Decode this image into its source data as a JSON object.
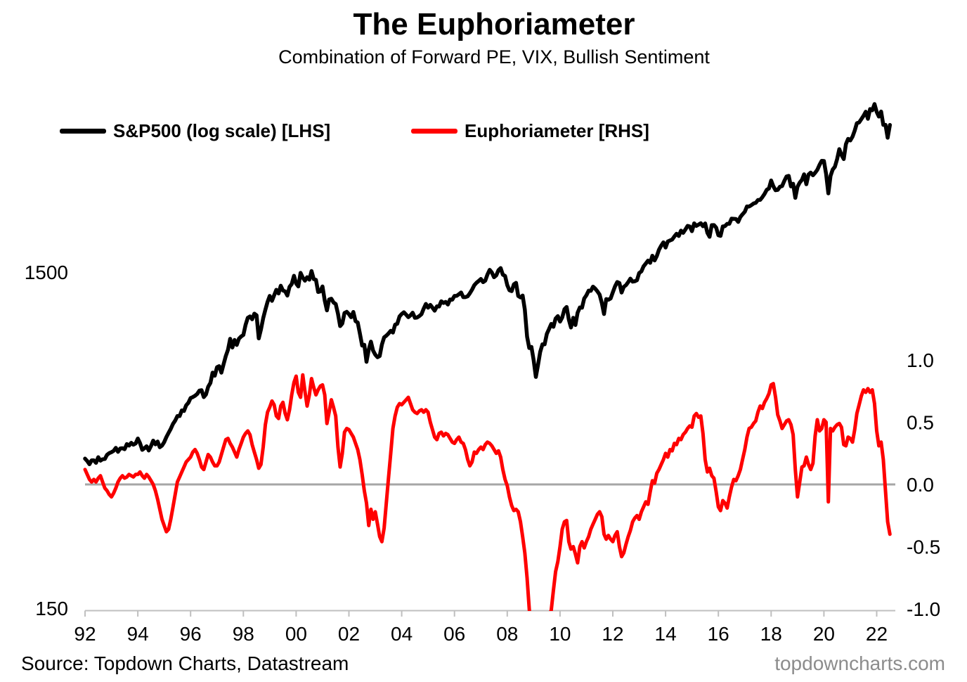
{
  "title": "The Euphoriameter",
  "subtitle": "Combination of Forward PE, VIX, Bullish Sentiment",
  "source": "Source: Topdown Charts, Datastream",
  "watermark": "topdowncharts.com",
  "colors": {
    "sp500": "#000000",
    "euphoriameter": "#ff0000",
    "zero_line": "#a6a6a6",
    "axis": "#bfbfbf",
    "watermark": "#8c8c8c",
    "background": "#ffffff"
  },
  "legend": [
    {
      "label": "S&P500 (log scale) [LHS]",
      "color": "#000000"
    },
    {
      "label": "Euphoriameter [RHS]",
      "color": "#ff0000"
    }
  ],
  "chart_data": {
    "type": "line",
    "title": "The Euphoriameter",
    "subtitle": "Combination of Forward PE, VIX, Bullish Sentiment",
    "grid": false,
    "legend_position": "top",
    "x_axis": {
      "range": [
        1992.0,
        2022.7
      ],
      "ticks": [
        {
          "label": "92",
          "year": 1992
        },
        {
          "label": "94",
          "year": 1994
        },
        {
          "label": "96",
          "year": 1996
        },
        {
          "label": "98",
          "year": 1998
        },
        {
          "label": "00",
          "year": 2000
        },
        {
          "label": "02",
          "year": 2002
        },
        {
          "label": "04",
          "year": 2004
        },
        {
          "label": "06",
          "year": 2006
        },
        {
          "label": "08",
          "year": 2008
        },
        {
          "label": "10",
          "year": 2010
        },
        {
          "label": "12",
          "year": 2012
        },
        {
          "label": "14",
          "year": 2014
        },
        {
          "label": "16",
          "year": 2016
        },
        {
          "label": "18",
          "year": 2018
        },
        {
          "label": "20",
          "year": 2020
        },
        {
          "label": "22",
          "year": 2022
        }
      ]
    },
    "left_axis": {
      "scale": "log",
      "title": "S&P500 (log scale)",
      "ticks": [
        {
          "label": "1500",
          "value": 1500
        },
        {
          "label": "150",
          "value": 150
        }
      ]
    },
    "right_axis": {
      "scale": "linear",
      "title": "Euphoriameter",
      "range": [
        -1.0,
        1.0
      ],
      "ticks": [
        {
          "label": "1.0",
          "value": 1.0
        },
        {
          "label": "0.5",
          "value": 0.5
        },
        {
          "label": "0.0",
          "value": 0.0
        },
        {
          "label": "-0.5",
          "value": -0.5
        },
        {
          "label": "-1.0",
          "value": -1.0
        }
      ],
      "zero_line": 0.0
    },
    "series": [
      {
        "name": "S&P500 (log scale) [LHS]",
        "axis": "left",
        "color": "#000000",
        "x_start": 1992.0,
        "x_step_months": 1,
        "values": [
          420,
          413,
          404,
          415,
          415,
          408,
          424,
          414,
          418,
          419,
          431,
          436,
          439,
          443,
          452,
          440,
          450,
          451,
          448,
          464,
          459,
          468,
          462,
          466,
          482,
          467,
          446,
          451,
          457,
          444,
          458,
          475,
          463,
          472,
          454,
          459,
          470,
          487,
          501,
          515,
          533,
          545,
          562,
          562,
          584,
          582,
          605,
          616,
          636,
          640,
          646,
          654,
          669,
          671,
          640,
          652,
          687,
          705,
          757,
          741,
          786,
          791,
          757,
          801,
          848,
          885,
          954,
          899,
          947,
          915,
          955,
          970,
          980,
          1049,
          1102,
          1112,
          1091,
          1134,
          1121,
          957,
          1017,
          1099,
          1164,
          1229,
          1280,
          1238,
          1286,
          1335,
          1302,
          1373,
          1329,
          1320,
          1283,
          1363,
          1389,
          1469,
          1394,
          1366,
          1499,
          1452,
          1421,
          1455,
          1431,
          1518,
          1437,
          1429,
          1315,
          1320,
          1366,
          1240,
          1160,
          1249,
          1256,
          1224,
          1211,
          1134,
          1041,
          1060,
          1139,
          1148,
          1130,
          1107,
          1147,
          1077,
          1067,
          990,
          911,
          916,
          815,
          886,
          936,
          880,
          856,
          841,
          848,
          917,
          964,
          975,
          990,
          1008,
          996,
          1051,
          1058,
          1112,
          1131,
          1145,
          1126,
          1107,
          1121,
          1141,
          1102,
          1104,
          1115,
          1130,
          1174,
          1212,
          1181,
          1204,
          1181,
          1157,
          1192,
          1191,
          1234,
          1220,
          1229,
          1207,
          1249,
          1248,
          1280,
          1281,
          1295,
          1311,
          1270,
          1270,
          1277,
          1304,
          1336,
          1378,
          1401,
          1418,
          1438,
          1407,
          1421,
          1482,
          1531,
          1503,
          1455,
          1474,
          1527,
          1549,
          1481,
          1468,
          1379,
          1331,
          1323,
          1386,
          1400,
          1280,
          1267,
          1283,
          1166,
          969,
          896,
          903,
          826,
          735,
          798,
          873,
          919,
          919,
          987,
          1021,
          1057,
          1036,
          1096,
          1115,
          1074,
          1104,
          1169,
          1187,
          1089,
          1031,
          1102,
          1049,
          1141,
          1183,
          1181,
          1258,
          1286,
          1327,
          1326,
          1364,
          1345,
          1321,
          1292,
          1219,
          1131,
          1253,
          1247,
          1258,
          1312,
          1366,
          1408,
          1398,
          1310,
          1362,
          1379,
          1407,
          1441,
          1412,
          1416,
          1426,
          1498,
          1515,
          1569,
          1598,
          1631,
          1606,
          1686,
          1633,
          1682,
          1757,
          1806,
          1848,
          1783,
          1859,
          1872,
          1884,
          1924,
          1960,
          1931,
          2003,
          1972,
          2018,
          2068,
          2059,
          1995,
          2105,
          2068,
          2086,
          2107,
          2063,
          2104,
          1972,
          1920,
          2079,
          2080,
          2044,
          1940,
          1932,
          2060,
          2065,
          2097,
          2099,
          2174,
          2171,
          2168,
          2126,
          2199,
          2239,
          2279,
          2364,
          2363,
          2384,
          2412,
          2423,
          2470,
          2472,
          2519,
          2575,
          2648,
          2674,
          2824,
          2714,
          2641,
          2648,
          2705,
          2718,
          2816,
          2902,
          2914,
          2712,
          2760,
          2507,
          2704,
          2784,
          2834,
          2946,
          2752,
          2942,
          2980,
          2926,
          2977,
          3038,
          3141,
          3231,
          3226,
          2954,
          2585,
          2912,
          3044,
          3100,
          3271,
          3500,
          3363,
          3270,
          3622,
          3756,
          3714,
          3811,
          3973,
          4181,
          4204,
          4298,
          4395,
          4523,
          4308,
          4605,
          4567,
          4766,
          4516,
          4374,
          4530,
          4132,
          4132,
          3785,
          4130
        ]
      },
      {
        "name": "Euphoriameter [RHS]",
        "axis": "right",
        "color": "#ff0000",
        "x_start": 1992.0,
        "x_step_months": 1,
        "values": [
          0.12,
          0.08,
          0.04,
          0.02,
          0.04,
          0.02,
          0.05,
          0.07,
          0.02,
          -0.03,
          -0.05,
          -0.08,
          -0.1,
          -0.07,
          -0.03,
          0.02,
          0.05,
          0.07,
          0.05,
          0.06,
          0.08,
          0.07,
          0.06,
          0.08,
          0.08,
          0.1,
          0.07,
          0.05,
          0.08,
          0.06,
          0.03,
          0.0,
          -0.05,
          -0.12,
          -0.2,
          -0.28,
          -0.33,
          -0.38,
          -0.36,
          -0.28,
          -0.18,
          -0.08,
          0.02,
          0.06,
          0.1,
          0.14,
          0.18,
          0.2,
          0.22,
          0.26,
          0.28,
          0.25,
          0.2,
          0.14,
          0.12,
          0.18,
          0.24,
          0.22,
          0.18,
          0.15,
          0.15,
          0.18,
          0.24,
          0.3,
          0.36,
          0.37,
          0.33,
          0.3,
          0.26,
          0.22,
          0.28,
          0.33,
          0.38,
          0.41,
          0.43,
          0.4,
          0.32,
          0.26,
          0.2,
          0.13,
          0.16,
          0.3,
          0.48,
          0.58,
          0.62,
          0.67,
          0.64,
          0.55,
          0.53,
          0.63,
          0.66,
          0.57,
          0.52,
          0.6,
          0.72,
          0.82,
          0.87,
          0.74,
          0.7,
          0.88,
          0.75,
          0.63,
          0.72,
          0.85,
          0.78,
          0.72,
          0.76,
          0.79,
          0.8,
          0.72,
          0.49,
          0.58,
          0.68,
          0.62,
          0.55,
          0.3,
          0.14,
          0.25,
          0.42,
          0.45,
          0.44,
          0.41,
          0.38,
          0.33,
          0.28,
          0.2,
          0.08,
          -0.05,
          -0.15,
          -0.33,
          -0.2,
          -0.28,
          -0.22,
          -0.32,
          -0.42,
          -0.46,
          -0.35,
          -0.15,
          0.05,
          0.25,
          0.45,
          0.55,
          0.62,
          0.65,
          0.64,
          0.66,
          0.68,
          0.7,
          0.65,
          0.6,
          0.58,
          0.57,
          0.59,
          0.6,
          0.58,
          0.6,
          0.58,
          0.5,
          0.44,
          0.38,
          0.36,
          0.41,
          0.42,
          0.39,
          0.41,
          0.4,
          0.37,
          0.34,
          0.33,
          0.36,
          0.38,
          0.34,
          0.33,
          0.28,
          0.2,
          0.15,
          0.18,
          0.26,
          0.25,
          0.28,
          0.3,
          0.28,
          0.32,
          0.34,
          0.33,
          0.31,
          0.28,
          0.25,
          0.27,
          0.22,
          0.12,
          0.04,
          -0.01,
          -0.1,
          -0.17,
          -0.21,
          -0.2,
          -0.22,
          -0.3,
          -0.42,
          -0.55,
          -0.75,
          -1.0,
          -1.2,
          -1.3,
          -1.36,
          -1.33,
          -1.28,
          -1.22,
          -1.16,
          -1.1,
          -1.05,
          -1.01,
          -0.85,
          -0.7,
          -0.62,
          -0.5,
          -0.36,
          -0.3,
          -0.29,
          -0.46,
          -0.52,
          -0.5,
          -0.56,
          -0.63,
          -0.5,
          -0.46,
          -0.51,
          -0.46,
          -0.42,
          -0.36,
          -0.32,
          -0.28,
          -0.24,
          -0.22,
          -0.26,
          -0.4,
          -0.44,
          -0.41,
          -0.44,
          -0.46,
          -0.41,
          -0.38,
          -0.5,
          -0.58,
          -0.55,
          -0.48,
          -0.42,
          -0.37,
          -0.3,
          -0.27,
          -0.25,
          -0.28,
          -0.22,
          -0.18,
          -0.14,
          -0.16,
          -0.06,
          0.03,
          0.01,
          0.09,
          0.12,
          0.16,
          0.2,
          0.25,
          0.22,
          0.28,
          0.27,
          0.33,
          0.32,
          0.37,
          0.36,
          0.4,
          0.42,
          0.45,
          0.47,
          0.46,
          0.55,
          0.57,
          0.54,
          0.55,
          0.41,
          0.2,
          0.1,
          0.13,
          0.07,
          0.05,
          -0.06,
          -0.18,
          -0.21,
          -0.13,
          -0.15,
          -0.19,
          -0.1,
          -0.02,
          0.04,
          0.03,
          0.07,
          0.12,
          0.2,
          0.28,
          0.38,
          0.45,
          0.46,
          0.49,
          0.51,
          0.58,
          0.63,
          0.61,
          0.66,
          0.69,
          0.73,
          0.8,
          0.81,
          0.7,
          0.56,
          0.51,
          0.45,
          0.48,
          0.51,
          0.52,
          0.48,
          0.4,
          0.12,
          -0.1,
          0.02,
          0.14,
          0.15,
          0.22,
          0.16,
          0.12,
          0.17,
          0.39,
          0.52,
          0.43,
          0.45,
          0.52,
          0.5,
          -0.14,
          0.45,
          0.43,
          0.46,
          0.48,
          0.49,
          0.46,
          0.32,
          0.31,
          0.38,
          0.37,
          0.34,
          0.44,
          0.57,
          0.64,
          0.71,
          0.76,
          0.74,
          0.77,
          0.74,
          0.76,
          0.65,
          0.43,
          0.31,
          0.34,
          0.2,
          -0.05,
          -0.3,
          -0.4
        ]
      }
    ]
  }
}
